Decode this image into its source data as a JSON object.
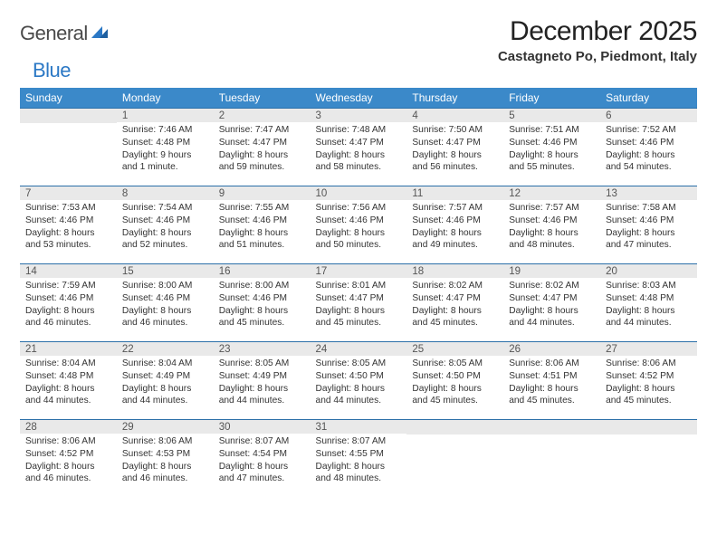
{
  "brand": {
    "part1": "General",
    "part2": "Blue"
  },
  "title": "December 2025",
  "location": "Castagneto Po, Piedmont, Italy",
  "colors": {
    "header_bg": "#3b89c9",
    "header_text": "#ffffff",
    "daynum_bg": "#e9e9e9",
    "daynum_border": "#2b6fa8",
    "brand_blue": "#2b78c5"
  },
  "weekdays": [
    "Sunday",
    "Monday",
    "Tuesday",
    "Wednesday",
    "Thursday",
    "Friday",
    "Saturday"
  ],
  "weeks": [
    [
      null,
      {
        "n": "1",
        "sr": "7:46 AM",
        "ss": "4:48 PM",
        "dl": "9 hours and 1 minute."
      },
      {
        "n": "2",
        "sr": "7:47 AM",
        "ss": "4:47 PM",
        "dl": "8 hours and 59 minutes."
      },
      {
        "n": "3",
        "sr": "7:48 AM",
        "ss": "4:47 PM",
        "dl": "8 hours and 58 minutes."
      },
      {
        "n": "4",
        "sr": "7:50 AM",
        "ss": "4:47 PM",
        "dl": "8 hours and 56 minutes."
      },
      {
        "n": "5",
        "sr": "7:51 AM",
        "ss": "4:46 PM",
        "dl": "8 hours and 55 minutes."
      },
      {
        "n": "6",
        "sr": "7:52 AM",
        "ss": "4:46 PM",
        "dl": "8 hours and 54 minutes."
      }
    ],
    [
      {
        "n": "7",
        "sr": "7:53 AM",
        "ss": "4:46 PM",
        "dl": "8 hours and 53 minutes."
      },
      {
        "n": "8",
        "sr": "7:54 AM",
        "ss": "4:46 PM",
        "dl": "8 hours and 52 minutes."
      },
      {
        "n": "9",
        "sr": "7:55 AM",
        "ss": "4:46 PM",
        "dl": "8 hours and 51 minutes."
      },
      {
        "n": "10",
        "sr": "7:56 AM",
        "ss": "4:46 PM",
        "dl": "8 hours and 50 minutes."
      },
      {
        "n": "11",
        "sr": "7:57 AM",
        "ss": "4:46 PM",
        "dl": "8 hours and 49 minutes."
      },
      {
        "n": "12",
        "sr": "7:57 AM",
        "ss": "4:46 PM",
        "dl": "8 hours and 48 minutes."
      },
      {
        "n": "13",
        "sr": "7:58 AM",
        "ss": "4:46 PM",
        "dl": "8 hours and 47 minutes."
      }
    ],
    [
      {
        "n": "14",
        "sr": "7:59 AM",
        "ss": "4:46 PM",
        "dl": "8 hours and 46 minutes."
      },
      {
        "n": "15",
        "sr": "8:00 AM",
        "ss": "4:46 PM",
        "dl": "8 hours and 46 minutes."
      },
      {
        "n": "16",
        "sr": "8:00 AM",
        "ss": "4:46 PM",
        "dl": "8 hours and 45 minutes."
      },
      {
        "n": "17",
        "sr": "8:01 AM",
        "ss": "4:47 PM",
        "dl": "8 hours and 45 minutes."
      },
      {
        "n": "18",
        "sr": "8:02 AM",
        "ss": "4:47 PM",
        "dl": "8 hours and 45 minutes."
      },
      {
        "n": "19",
        "sr": "8:02 AM",
        "ss": "4:47 PM",
        "dl": "8 hours and 44 minutes."
      },
      {
        "n": "20",
        "sr": "8:03 AM",
        "ss": "4:48 PM",
        "dl": "8 hours and 44 minutes."
      }
    ],
    [
      {
        "n": "21",
        "sr": "8:04 AM",
        "ss": "4:48 PM",
        "dl": "8 hours and 44 minutes."
      },
      {
        "n": "22",
        "sr": "8:04 AM",
        "ss": "4:49 PM",
        "dl": "8 hours and 44 minutes."
      },
      {
        "n": "23",
        "sr": "8:05 AM",
        "ss": "4:49 PM",
        "dl": "8 hours and 44 minutes."
      },
      {
        "n": "24",
        "sr": "8:05 AM",
        "ss": "4:50 PM",
        "dl": "8 hours and 44 minutes."
      },
      {
        "n": "25",
        "sr": "8:05 AM",
        "ss": "4:50 PM",
        "dl": "8 hours and 45 minutes."
      },
      {
        "n": "26",
        "sr": "8:06 AM",
        "ss": "4:51 PM",
        "dl": "8 hours and 45 minutes."
      },
      {
        "n": "27",
        "sr": "8:06 AM",
        "ss": "4:52 PM",
        "dl": "8 hours and 45 minutes."
      }
    ],
    [
      {
        "n": "28",
        "sr": "8:06 AM",
        "ss": "4:52 PM",
        "dl": "8 hours and 46 minutes."
      },
      {
        "n": "29",
        "sr": "8:06 AM",
        "ss": "4:53 PM",
        "dl": "8 hours and 46 minutes."
      },
      {
        "n": "30",
        "sr": "8:07 AM",
        "ss": "4:54 PM",
        "dl": "8 hours and 47 minutes."
      },
      {
        "n": "31",
        "sr": "8:07 AM",
        "ss": "4:55 PM",
        "dl": "8 hours and 48 minutes."
      },
      null,
      null,
      null
    ]
  ],
  "labels": {
    "sunrise": "Sunrise:",
    "sunset": "Sunset:",
    "daylight": "Daylight:"
  }
}
